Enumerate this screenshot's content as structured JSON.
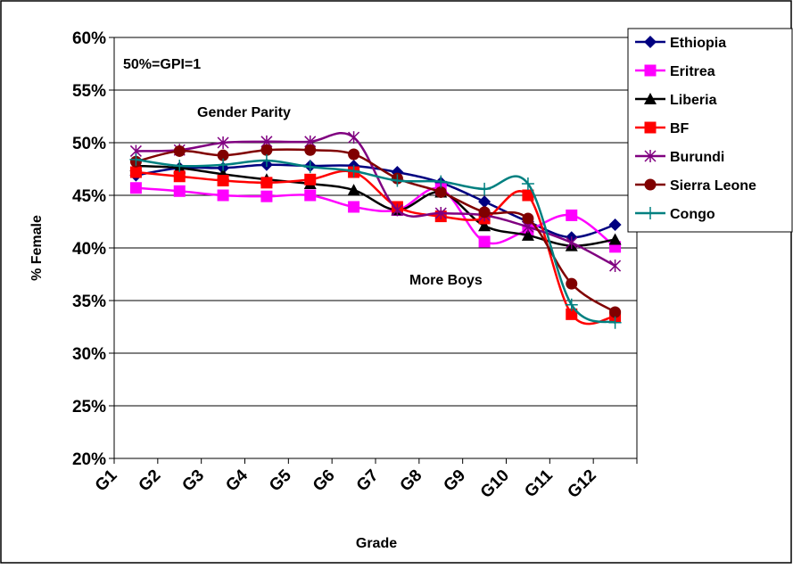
{
  "chart_data": {
    "type": "line",
    "title": "",
    "xlabel": "Grade",
    "ylabel": "% Female",
    "categories": [
      "G1",
      "G2",
      "G3",
      "G4",
      "G5",
      "G6",
      "G7",
      "G8",
      "G9",
      "G10",
      "G11",
      "G12"
    ],
    "yticks": [
      "20%",
      "25%",
      "30%",
      "35%",
      "40%",
      "45%",
      "50%",
      "55%",
      "60%"
    ],
    "ylim": [
      20,
      60
    ],
    "grid": true,
    "legend_position": "right",
    "annotations": [
      "50%=GPI=1",
      "Gender Parity",
      "More Boys"
    ],
    "series": [
      {
        "name": "Ethiopia",
        "color": "#000080",
        "marker": "diamond",
        "values": [
          46.9,
          47.6,
          47.6,
          47.9,
          47.8,
          47.8,
          47.2,
          46.2,
          44.4,
          42.5,
          41.0,
          42.2
        ]
      },
      {
        "name": "Eritrea",
        "color": "#FF00FF",
        "marker": "square",
        "values": [
          45.7,
          45.4,
          45.0,
          44.9,
          45.0,
          43.9,
          43.6,
          45.6,
          40.6,
          41.7,
          43.1,
          40.1
        ]
      },
      {
        "name": "Liberia",
        "color": "#000000",
        "marker": "triangle",
        "values": [
          47.8,
          47.6,
          47.0,
          46.5,
          46.1,
          45.5,
          43.6,
          45.3,
          42.1,
          41.2,
          40.2,
          40.8
        ]
      },
      {
        "name": "BF",
        "color": "#FF0000",
        "marker": "square",
        "values": [
          47.2,
          46.8,
          46.4,
          46.2,
          46.5,
          47.2,
          43.9,
          43.0,
          42.8,
          45.0,
          33.7,
          33.5
        ]
      },
      {
        "name": "Burundi",
        "color": "#800080",
        "marker": "star",
        "values": [
          49.2,
          49.3,
          50.0,
          50.1,
          50.1,
          50.5,
          43.6,
          43.3,
          43.1,
          42.0,
          40.5,
          38.3
        ]
      },
      {
        "name": "Sierra Leone",
        "color": "#800000",
        "marker": "circle",
        "values": [
          48.2,
          49.2,
          48.8,
          49.3,
          49.3,
          48.9,
          46.6,
          45.3,
          43.4,
          42.8,
          36.6,
          33.9
        ]
      },
      {
        "name": "Congo",
        "color": "#008080",
        "marker": "plus",
        "values": [
          48.4,
          47.8,
          47.9,
          48.3,
          47.7,
          47.3,
          46.4,
          46.3,
          45.6,
          46.1,
          34.6,
          32.9
        ]
      }
    ]
  }
}
